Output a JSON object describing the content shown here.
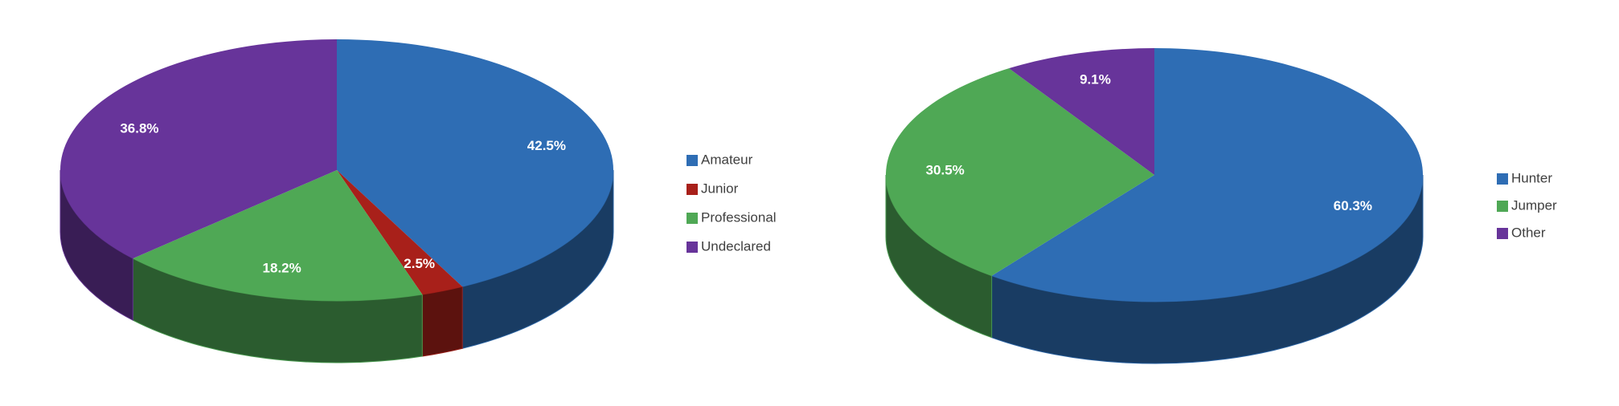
{
  "chart_data": [
    {
      "type": "pie",
      "categories": [
        "Amateur",
        "Junior",
        "Professional",
        "Undeclared"
      ],
      "values": [
        42.5,
        2.5,
        18.2,
        36.8
      ],
      "value_labels": [
        "42.5%",
        "2.5%",
        "18.2%",
        "36.8%"
      ],
      "colors": [
        "#2e6db4",
        "#a8201a",
        "#4fa855",
        "#67349a"
      ],
      "legend": "right"
    },
    {
      "type": "pie",
      "categories": [
        "Hunter",
        "Jumper",
        "Other"
      ],
      "values": [
        60.3,
        30.5,
        9.1
      ],
      "value_labels": [
        "60.3%",
        "30.5%",
        "9.1%"
      ],
      "colors": [
        "#2e6db4",
        "#4fa855",
        "#67349a"
      ],
      "legend": "right"
    }
  ]
}
